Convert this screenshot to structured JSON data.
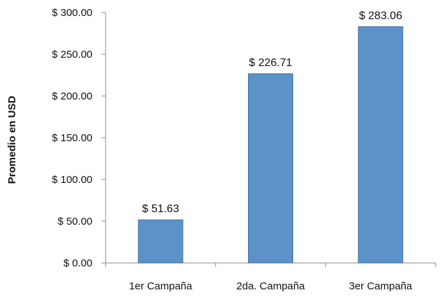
{
  "chart_data": {
    "type": "bar",
    "categories": [
      "1er Campaña",
      "2da. Campaña",
      "3er Campaña"
    ],
    "values": [
      51.63,
      226.71,
      283.06
    ],
    "data_labels": [
      "$ 51.63",
      "$ 226.71",
      "$ 283.06"
    ],
    "title": "",
    "xlabel": "",
    "ylabel": "Promedio en USD",
    "ylim": [
      0,
      300
    ],
    "y_ticks": [
      0,
      50,
      100,
      150,
      200,
      250,
      300
    ],
    "y_tick_labels": [
      "$ 0.00",
      "$ 50.00",
      "$ 100.00",
      "$ 150.00",
      "$ 200.00",
      "$ 250.00",
      "$ 300.00"
    ],
    "grid": false,
    "legend": "none",
    "bar_color": "#5b93c9",
    "bar_edge_color": "#3f6fa3"
  }
}
